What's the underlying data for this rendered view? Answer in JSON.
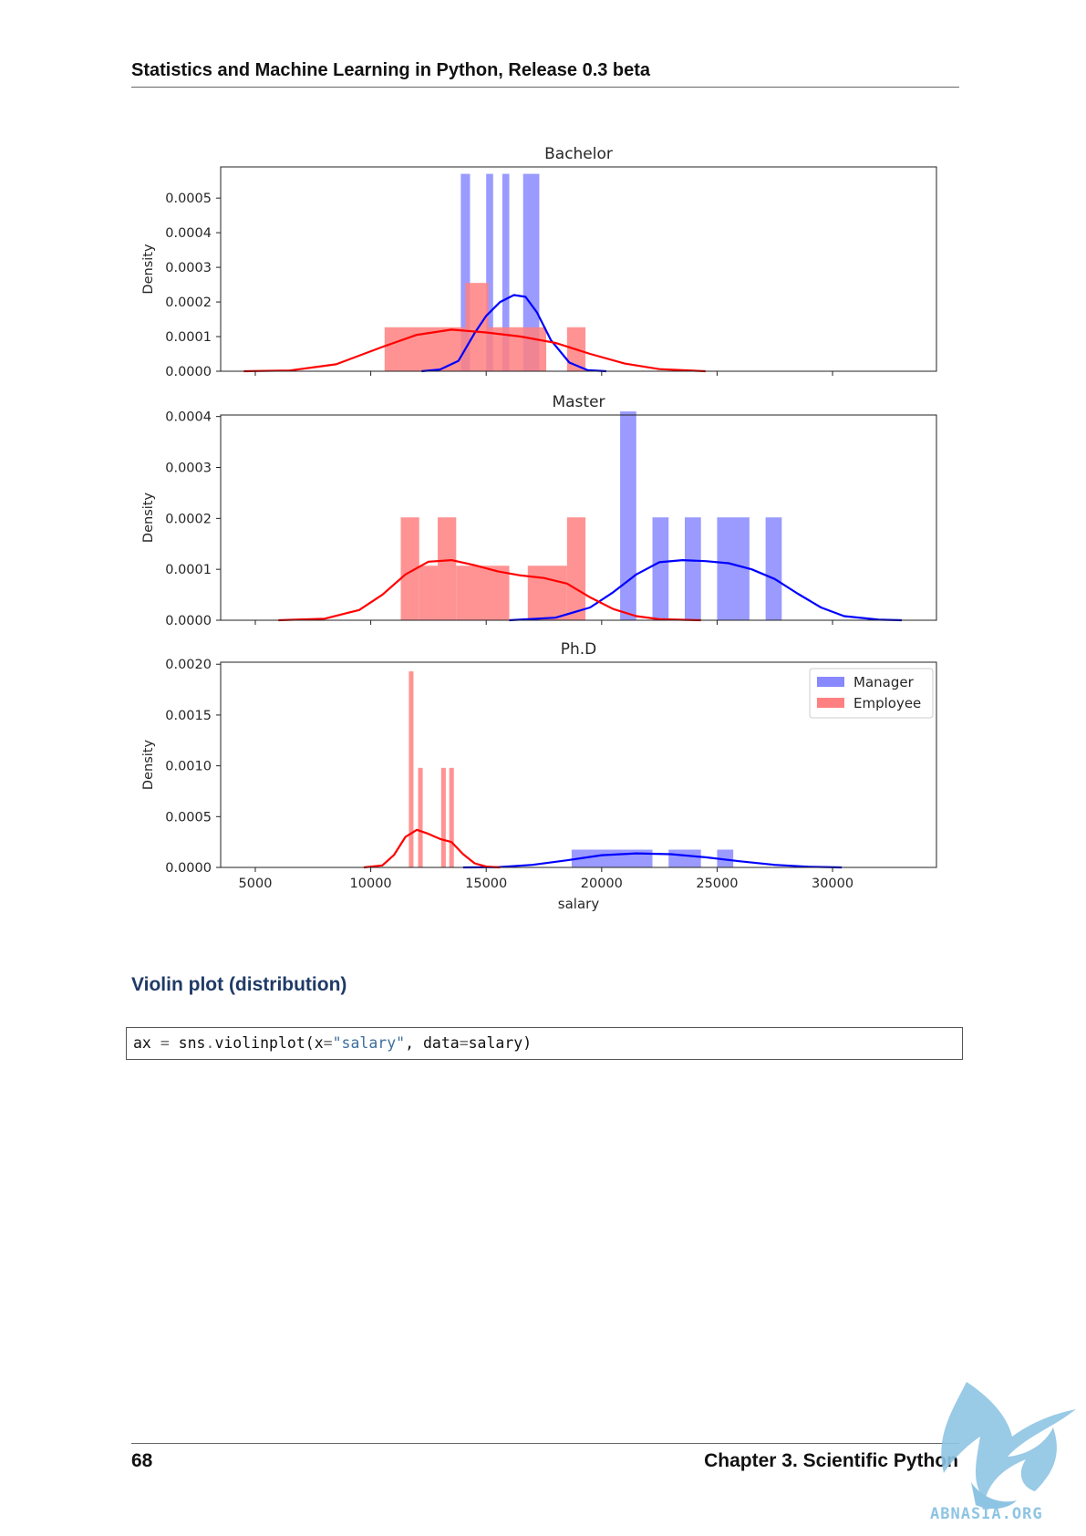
{
  "header": {
    "running_title": "Statistics and Machine Learning in Python, Release 0.3 beta"
  },
  "chart_data": [
    {
      "type": "histogram+kde",
      "title": "Bachelor",
      "xlabel": "",
      "ylabel": "Density",
      "xlim": [
        3500,
        34500
      ],
      "ylim": [
        0,
        0.00059
      ],
      "yticks": [
        0.0,
        0.0001,
        0.0002,
        0.0003,
        0.0004,
        0.0005
      ],
      "ytick_labels": [
        "0.0000",
        "0.0001",
        "0.0002",
        "0.0003",
        "0.0004",
        "0.0005"
      ],
      "xticks": [
        5000,
        10000,
        15000,
        20000,
        25000,
        30000
      ],
      "legend": null,
      "series": [
        {
          "name": "Manager",
          "color": "#0000ff",
          "hist_color": "#8888ff",
          "bins": [
            [
              13900,
              14300,
              0.00057
            ],
            [
              15000,
              15300,
              0.00057
            ],
            [
              15700,
              16000,
              0.00057
            ],
            [
              16600,
              17300,
              0.00057
            ]
          ],
          "kde": [
            [
              12200,
              0
            ],
            [
              13000,
              5e-06
            ],
            [
              13800,
              3e-05
            ],
            [
              14500,
              0.00011
            ],
            [
              15000,
              0.00016
            ],
            [
              15600,
              0.0002
            ],
            [
              16200,
              0.00022
            ],
            [
              16700,
              0.000215
            ],
            [
              17200,
              0.00017
            ],
            [
              17800,
              9e-05
            ],
            [
              18600,
              2.5e-05
            ],
            [
              19400,
              3e-06
            ],
            [
              20200,
              0
            ]
          ]
        },
        {
          "name": "Employee",
          "color": "#ff0000",
          "hist_color": "#ff8080",
          "bins": [
            [
              10600,
              14100,
              0.000127
            ],
            [
              14100,
              15100,
              0.000255
            ],
            [
              15100,
              16800,
              0.000127
            ],
            [
              16800,
              17600,
              0.000127
            ],
            [
              18500,
              19300,
              0.000127
            ]
          ],
          "kde": [
            [
              4500,
              0
            ],
            [
              6500,
              2e-06
            ],
            [
              8500,
              2e-05
            ],
            [
              10500,
              7e-05
            ],
            [
              12000,
              0.000105
            ],
            [
              13500,
              0.00012
            ],
            [
              15000,
              0.000112
            ],
            [
              16500,
              0.0001
            ],
            [
              18000,
              8.2e-05
            ],
            [
              19500,
              5e-05
            ],
            [
              21000,
              2.2e-05
            ],
            [
              22500,
              6e-06
            ],
            [
              24500,
              0
            ]
          ]
        }
      ]
    },
    {
      "type": "histogram+kde",
      "title": "Master",
      "xlabel": "",
      "ylabel": "Density",
      "xlim": [
        3500,
        34500
      ],
      "ylim": [
        0,
        0.000403
      ],
      "yticks": [
        0.0,
        0.0001,
        0.0002,
        0.0003,
        0.0004
      ],
      "ytick_labels": [
        "0.0000",
        "0.0001",
        "0.0002",
        "0.0003",
        "0.0004"
      ],
      "xticks": [
        5000,
        10000,
        15000,
        20000,
        25000,
        30000
      ],
      "legend": null,
      "series": [
        {
          "name": "Manager",
          "color": "#0000ff",
          "hist_color": "#8888ff",
          "bins": [
            [
              20800,
              21500,
              0.00041
            ],
            [
              22200,
              22900,
              0.000202
            ],
            [
              23600,
              24300,
              0.000202
            ],
            [
              25000,
              26400,
              0.000202
            ],
            [
              27100,
              27800,
              0.000202
            ]
          ],
          "kde": [
            [
              16000,
              0
            ],
            [
              18000,
              5e-06
            ],
            [
              19500,
              2.5e-05
            ],
            [
              20500,
              5.5e-05
            ],
            [
              21500,
              9e-05
            ],
            [
              22500,
              0.000114
            ],
            [
              23500,
              0.000118
            ],
            [
              24500,
              0.000116
            ],
            [
              25500,
              0.000112
            ],
            [
              26500,
              0.0001
            ],
            [
              27500,
              8.1e-05
            ],
            [
              28500,
              5.2e-05
            ],
            [
              29500,
              2.5e-05
            ],
            [
              30500,
              8e-06
            ],
            [
              32000,
              1e-06
            ],
            [
              33000,
              0
            ]
          ]
        },
        {
          "name": "Employee",
          "color": "#ff0000",
          "hist_color": "#ff8080",
          "bins": [
            [
              11300,
              12100,
              0.000202
            ],
            [
              12100,
              12900,
              0.000107
            ],
            [
              12900,
              13700,
              0.000202
            ],
            [
              13700,
              16000,
              0.000107
            ],
            [
              16800,
              18500,
              0.000107
            ],
            [
              18500,
              19300,
              0.000202
            ]
          ],
          "kde": [
            [
              6000,
              0
            ],
            [
              8000,
              3e-06
            ],
            [
              9500,
              2e-05
            ],
            [
              10500,
              5e-05
            ],
            [
              11500,
              9e-05
            ],
            [
              12500,
              0.000115
            ],
            [
              13500,
              0.000118
            ],
            [
              14500,
              0.000108
            ],
            [
              15500,
              9.6e-05
            ],
            [
              16500,
              8.8e-05
            ],
            [
              17500,
              8.3e-05
            ],
            [
              18500,
              7.2e-05
            ],
            [
              19500,
              4.5e-05
            ],
            [
              20500,
              2.2e-05
            ],
            [
              21500,
              8e-06
            ],
            [
              22500,
              2e-06
            ],
            [
              24300,
              0
            ]
          ]
        }
      ]
    },
    {
      "type": "histogram+kde",
      "title": "Ph.D",
      "xlabel": "salary",
      "ylabel": "Density",
      "xlim": [
        3500,
        34500
      ],
      "ylim": [
        0,
        0.00202
      ],
      "yticks": [
        0.0,
        0.0005,
        0.001,
        0.0015,
        0.002
      ],
      "ytick_labels": [
        "0.0000",
        "0.0005",
        "0.0010",
        "0.0015",
        "0.0020"
      ],
      "xticks": [
        5000,
        10000,
        15000,
        20000,
        25000,
        30000
      ],
      "xtick_labels": [
        "5000",
        "10000",
        "15000",
        "20000",
        "25000",
        "30000"
      ],
      "legend": "top-right",
      "series": [
        {
          "name": "Manager",
          "color": "#0000ff",
          "hist_color": "#8888ff",
          "bins": [
            [
              18700,
              22200,
              0.000175
            ],
            [
              22900,
              24300,
              0.000175
            ],
            [
              25000,
              25700,
              0.000175
            ]
          ],
          "kde": [
            [
              14000,
              0
            ],
            [
              15500,
              3e-06
            ],
            [
              17000,
              2.5e-05
            ],
            [
              18500,
              7e-05
            ],
            [
              20000,
              0.00012
            ],
            [
              21500,
              0.000138
            ],
            [
              23000,
              0.00013
            ],
            [
              24500,
              0.0001
            ],
            [
              26000,
              6e-05
            ],
            [
              27500,
              2.5e-05
            ],
            [
              29000,
              6e-06
            ],
            [
              30400,
              0
            ]
          ]
        },
        {
          "name": "Employee",
          "color": "#ff0000",
          "hist_color": "#ff8080",
          "bins": [
            [
              11650,
              11850,
              0.00193
            ],
            [
              12050,
              12250,
              0.00098
            ],
            [
              13050,
              13250,
              0.00098
            ],
            [
              13400,
              13600,
              0.00098
            ]
          ],
          "kde": [
            [
              9700,
              0
            ],
            [
              10500,
              2e-05
            ],
            [
              11000,
              0.00012
            ],
            [
              11500,
              0.0003
            ],
            [
              12000,
              0.00037
            ],
            [
              12500,
              0.00033
            ],
            [
              13000,
              0.00028
            ],
            [
              13500,
              0.00025
            ],
            [
              14000,
              0.00013
            ],
            [
              14500,
              4e-05
            ],
            [
              15000,
              8e-06
            ],
            [
              15600,
              0
            ]
          ]
        }
      ]
    }
  ],
  "legend": {
    "manager": "Manager",
    "employee": "Employee"
  },
  "section": {
    "title": "Violin plot (distribution)"
  },
  "code": {
    "p1": "ax ",
    "op1": "=",
    "p2": " sns",
    "op2": ".",
    "p3": "violinplot(x",
    "op3": "=",
    "str1": "\"salary\"",
    "p4": ", data",
    "op4": "=",
    "p5": "salary)"
  },
  "footer": {
    "page_number": "68",
    "chapter": "Chapter 3.  Scientific Python"
  },
  "watermark": {
    "text": "ABNASIA.ORG"
  }
}
